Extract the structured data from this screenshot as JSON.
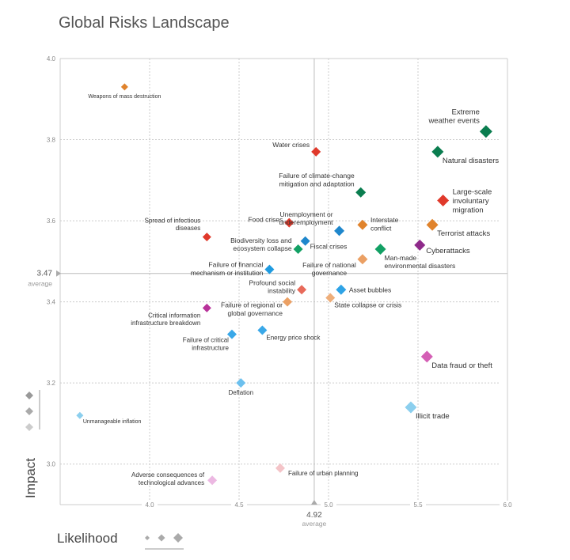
{
  "chart_data": {
    "type": "scatter",
    "title": "Global Risks Landscape",
    "xlabel": "Likelihood",
    "ylabel": "Impact",
    "xlim": [
      3.5,
      6.0
    ],
    "ylim": [
      2.9,
      4.0
    ],
    "xticks": [
      "4.0",
      "4.5",
      "5.0",
      "5.5",
      "6.0"
    ],
    "yticks": [
      "4.0",
      "3.8",
      "3.6",
      "3.4",
      "3.2",
      "3.0"
    ],
    "grid": true,
    "averages": {
      "x": 4.92,
      "x_label": "4.92",
      "y": 3.47,
      "y_label": "3.47",
      "caption": "average"
    },
    "points": [
      {
        "name": "Weapons of mass destruction",
        "x": 3.86,
        "y": 3.93,
        "color": "#e0832c"
      },
      {
        "name": "Water crises",
        "x": 4.93,
        "y": 3.77,
        "color": "#e0392b"
      },
      {
        "name": "Extreme\nweather events",
        "x": 5.88,
        "y": 3.82,
        "color": "#0a7d4f"
      },
      {
        "name": "Natural disasters",
        "x": 5.61,
        "y": 3.77,
        "color": "#0a7d4f"
      },
      {
        "name": "Failure of climate-change\nmitigation and adaptation",
        "x": 5.18,
        "y": 3.67,
        "color": "#0a7d4f"
      },
      {
        "name": "Large-scale\ninvoluntary\nmigration",
        "x": 5.64,
        "y": 3.65,
        "color": "#e0392b"
      },
      {
        "name": "Food crises",
        "x": 4.78,
        "y": 3.595,
        "color": "#e0392b"
      },
      {
        "name": "Unemployment or\nunderemployment",
        "x": 5.06,
        "y": 3.575,
        "color": "#1f87cc"
      },
      {
        "name": "Interstate\nconflict",
        "x": 5.19,
        "y": 3.59,
        "color": "#e0832c"
      },
      {
        "name": "Terrorist attacks",
        "x": 5.58,
        "y": 3.59,
        "color": "#e0832c"
      },
      {
        "name": "Spread of infectious\ndiseases",
        "x": 4.32,
        "y": 3.56,
        "color": "#e0392b"
      },
      {
        "name": "Fiscal crises",
        "x": 4.87,
        "y": 3.55,
        "color": "#1f87cc"
      },
      {
        "name": "Biodiversity loss and\necosystem collapse",
        "x": 4.83,
        "y": 3.53,
        "color": "#12a064"
      },
      {
        "name": "Man-made\nenvironmental disasters",
        "x": 5.29,
        "y": 3.53,
        "color": "#12a064"
      },
      {
        "name": "Cyberattacks",
        "x": 5.51,
        "y": 3.54,
        "color": "#8e2a8a"
      },
      {
        "name": "Failure of national\ngovernance",
        "x": 5.19,
        "y": 3.505,
        "color": "#eba064"
      },
      {
        "name": "Failure of financial\nmechanism or institution",
        "x": 4.67,
        "y": 3.48,
        "color": "#1f9be0"
      },
      {
        "name": "Profound social\ninstability",
        "x": 4.85,
        "y": 3.43,
        "color": "#e86a5a"
      },
      {
        "name": "Asset bubbles",
        "x": 5.07,
        "y": 3.43,
        "color": "#2fa3e6"
      },
      {
        "name": "Failure of regional or\nglobal governance",
        "x": 4.77,
        "y": 3.4,
        "color": "#eba064"
      },
      {
        "name": "State collapse or crisis",
        "x": 5.01,
        "y": 3.41,
        "color": "#eeae7a"
      },
      {
        "name": "Critical information\ninfrastructure breakdown",
        "x": 4.32,
        "y": 3.385,
        "color": "#b8329a"
      },
      {
        "name": "Energy price shock",
        "x": 4.63,
        "y": 3.33,
        "color": "#3aa8e8"
      },
      {
        "name": "Failure of critical\ninfrastructure",
        "x": 4.46,
        "y": 3.32,
        "color": "#3aa8e8"
      },
      {
        "name": "Deflation",
        "x": 4.51,
        "y": 3.2,
        "color": "#6cc0ee"
      },
      {
        "name": "Data fraud or theft",
        "x": 5.55,
        "y": 3.265,
        "color": "#d45fb5"
      },
      {
        "name": "Illicit trade",
        "x": 5.46,
        "y": 3.14,
        "color": "#8ccfee"
      },
      {
        "name": "Unmanageable inflation",
        "x": 3.61,
        "y": 3.12,
        "color": "#8ccfee"
      },
      {
        "name": "Failure of urban planning",
        "x": 4.73,
        "y": 2.99,
        "color": "#f4c4c8"
      },
      {
        "name": "Adverse consequences of\ntechnological advances",
        "x": 4.35,
        "y": 2.96,
        "color": "#ecb8e2"
      }
    ]
  }
}
